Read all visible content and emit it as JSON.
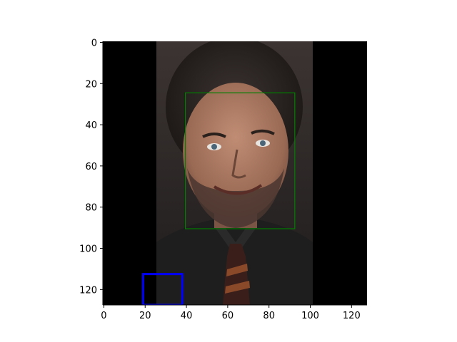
{
  "chart_data": {
    "type": "image",
    "xlim": [
      -0.5,
      127.5
    ],
    "ylim": [
      127.5,
      -0.5
    ],
    "x_ticks": [
      0,
      20,
      40,
      60,
      80,
      100,
      120
    ],
    "y_ticks": [
      0,
      20,
      40,
      60,
      80,
      100,
      120
    ],
    "photo": {
      "x_range": [
        25.5,
        101.5
      ],
      "y_range": [
        -0.5,
        127.5
      ],
      "subject": "portrait of a smiling man with curly dark hair and a beard, wearing a dark shirt and striped tie"
    },
    "annotations": [
      {
        "name": "face-box",
        "shape": "rectangle",
        "x0": 39.5,
        "y0": 24.5,
        "x1": 92.5,
        "y1": 90.5,
        "color": "#008000"
      },
      {
        "name": "marker-box",
        "shape": "rectangle",
        "x0": 19,
        "y0": 112.5,
        "x1": 38,
        "y1": 127.5,
        "color": "#0000ff"
      }
    ],
    "grid": false,
    "legend": "none"
  },
  "colors": {
    "background_pad": "#000000",
    "face_box": "#008000",
    "marker_box": "#0000ff"
  }
}
